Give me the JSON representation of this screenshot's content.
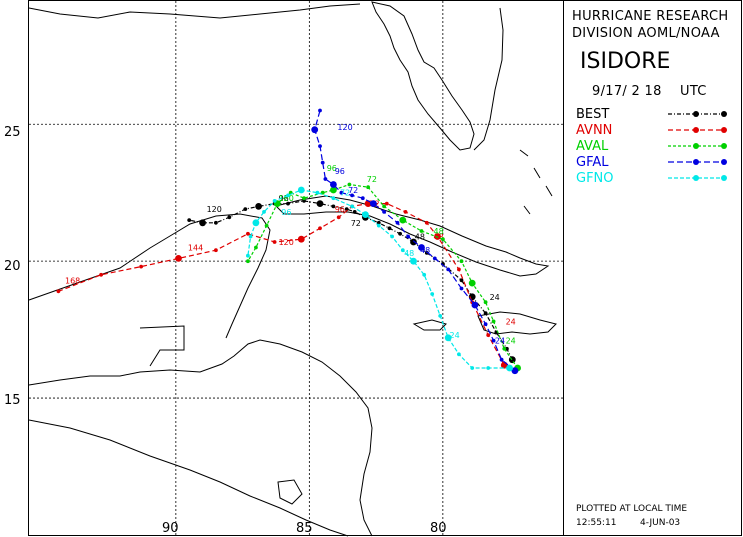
{
  "header": {
    "org_line1": "HURRICANE RESEARCH",
    "org_line2": "DIVISION AOML/NOAA",
    "storm_name": "ISIDORE",
    "init_time": "9/17/ 2 18",
    "time_zone": "UTC"
  },
  "footer": {
    "note": "PLOTTED AT LOCAL TIME",
    "clock": "12:55:11",
    "date": "4-JUN-03"
  },
  "axes": {
    "lat_labels": [
      "25",
      "20",
      "15"
    ],
    "lon_labels": [
      "90",
      "85",
      "80"
    ]
  },
  "colors": {
    "BEST": "#000000",
    "AVNN": "#e00000",
    "AVAL": "#00d000",
    "GFAL": "#0000e0",
    "GFNO": "#00e8e8"
  },
  "chart_data": {
    "type": "track-map",
    "x_unit": "degrees W longitude",
    "y_unit": "degrees N latitude",
    "xlim": [
      95.5,
      75.5
    ],
    "ylim": [
      10,
      29.5
    ],
    "grid_lon": [
      90,
      85,
      80
    ],
    "grid_lat": [
      25,
      20,
      15
    ],
    "series": [
      {
        "name": "BEST",
        "points": [
          [
            77.4,
            16.4
          ],
          [
            77.6,
            16.8
          ],
          [
            78.0,
            17.4
          ],
          [
            78.4,
            18.1
          ],
          [
            78.9,
            18.7
          ],
          [
            79.3,
            19.3
          ],
          [
            80.0,
            19.9
          ],
          [
            80.6,
            20.3
          ],
          [
            81.1,
            20.7
          ],
          [
            81.6,
            21.0
          ],
          [
            82.0,
            21.2
          ],
          [
            82.4,
            21.4
          ],
          [
            82.9,
            21.6
          ],
          [
            83.3,
            21.8
          ],
          [
            83.6,
            21.9
          ],
          [
            84.1,
            22.0
          ],
          [
            84.6,
            22.1
          ],
          [
            85.2,
            22.2
          ],
          [
            85.8,
            22.1
          ],
          [
            86.3,
            22.1
          ],
          [
            86.9,
            22.0
          ],
          [
            87.4,
            21.9
          ],
          [
            88.0,
            21.6
          ],
          [
            88.5,
            21.4
          ],
          [
            89.0,
            21.4
          ],
          [
            89.5,
            21.5
          ]
        ],
        "labels": [
          {
            "text": "24",
            "lon": 78.4,
            "lat": 18.7
          },
          {
            "text": "48",
            "lon": 81.2,
            "lat": 20.9
          },
          {
            "text": "72",
            "lon": 83.6,
            "lat": 21.4
          },
          {
            "text": "96",
            "lon": 86.3,
            "lat": 22.3
          },
          {
            "text": "120",
            "lon": 89.0,
            "lat": 21.9
          }
        ]
      },
      {
        "name": "AVNN",
        "points": [
          [
            77.7,
            16.2
          ],
          [
            78.3,
            17.3
          ],
          [
            78.9,
            18.5
          ],
          [
            79.4,
            19.7
          ],
          [
            80.2,
            20.9
          ],
          [
            80.6,
            21.4
          ],
          [
            81.4,
            21.8
          ],
          [
            82.1,
            22.1
          ],
          [
            82.8,
            22.1
          ],
          [
            83.4,
            22.0
          ],
          [
            83.9,
            21.6
          ],
          [
            84.6,
            21.2
          ],
          [
            85.3,
            20.8
          ],
          [
            86.3,
            20.7
          ],
          [
            87.3,
            21.0
          ],
          [
            88.5,
            20.4
          ],
          [
            89.9,
            20.1
          ],
          [
            91.3,
            19.8
          ],
          [
            92.8,
            19.5
          ],
          [
            94.4,
            18.9
          ]
        ],
        "labels": [
          {
            "text": "24",
            "lon": 77.8,
            "lat": 17.8
          },
          {
            "text": "48",
            "lon": 80.5,
            "lat": 20.9
          },
          {
            "text": "72",
            "lon": 82.9,
            "lat": 22.1
          },
          {
            "text": "96",
            "lon": 84.2,
            "lat": 21.9
          },
          {
            "text": "120",
            "lon": 86.3,
            "lat": 20.7
          },
          {
            "text": "144",
            "lon": 89.7,
            "lat": 20.5
          },
          {
            "text": "168",
            "lon": 94.3,
            "lat": 19.3
          }
        ]
      },
      {
        "name": "AVAL",
        "points": [
          [
            77.2,
            16.1
          ],
          [
            77.7,
            16.8
          ],
          [
            78.1,
            17.8
          ],
          [
            78.4,
            18.5
          ],
          [
            78.9,
            19.2
          ],
          [
            79.3,
            20.0
          ],
          [
            80.0,
            20.8
          ],
          [
            80.8,
            21.1
          ],
          [
            81.5,
            21.5
          ],
          [
            82.2,
            22.0
          ],
          [
            82.8,
            22.7
          ],
          [
            83.5,
            22.8
          ],
          [
            84.1,
            22.6
          ],
          [
            84.5,
            22.5
          ],
          [
            85.2,
            22.3
          ],
          [
            85.7,
            22.5
          ],
          [
            86.2,
            22.1
          ],
          [
            86.6,
            21.3
          ],
          [
            87.0,
            20.5
          ],
          [
            87.3,
            20.0
          ]
        ],
        "labels": [
          {
            "text": "24",
            "lon": 77.8,
            "lat": 17.1
          },
          {
            "text": "48",
            "lon": 80.5,
            "lat": 21.1
          },
          {
            "text": "72",
            "lon": 83.0,
            "lat": 23.0
          },
          {
            "text": "96",
            "lon": 84.5,
            "lat": 23.4
          },
          {
            "text": "120",
            "lon": 86.3,
            "lat": 22.3
          }
        ]
      },
      {
        "name": "GFAL",
        "points": [
          [
            77.3,
            16.0
          ],
          [
            77.8,
            16.4
          ],
          [
            78.1,
            17.1
          ],
          [
            78.4,
            17.7
          ],
          [
            78.8,
            18.4
          ],
          [
            79.3,
            19.0
          ],
          [
            79.8,
            19.7
          ],
          [
            80.3,
            20.1
          ],
          [
            80.8,
            20.5
          ],
          [
            81.3,
            20.9
          ],
          [
            81.7,
            21.4
          ],
          [
            82.2,
            21.8
          ],
          [
            82.6,
            22.1
          ],
          [
            83.0,
            22.3
          ],
          [
            83.4,
            22.4
          ],
          [
            83.8,
            22.5
          ],
          [
            84.1,
            22.8
          ],
          [
            84.4,
            23.0
          ],
          [
            84.5,
            23.6
          ],
          [
            84.6,
            24.2
          ],
          [
            84.8,
            24.8
          ],
          [
            84.6,
            25.5
          ]
        ],
        "labels": [
          {
            "text": "24",
            "lon": 78.2,
            "lat": 17.1
          },
          {
            "text": "48",
            "lon": 81.0,
            "lat": 20.4
          },
          {
            "text": "72",
            "lon": 83.7,
            "lat": 22.6
          },
          {
            "text": "96",
            "lon": 84.2,
            "lat": 23.3
          },
          {
            "text": "120",
            "lon": 84.1,
            "lat": 24.9
          }
        ]
      },
      {
        "name": "GFNO",
        "points": [
          [
            77.5,
            16.1
          ],
          [
            78.3,
            16.1
          ],
          [
            78.9,
            16.1
          ],
          [
            79.4,
            16.6
          ],
          [
            79.8,
            17.2
          ],
          [
            80.1,
            18.0
          ],
          [
            80.4,
            18.8
          ],
          [
            80.7,
            19.5
          ],
          [
            81.1,
            20.0
          ],
          [
            81.5,
            20.4
          ],
          [
            81.9,
            20.9
          ],
          [
            82.4,
            21.3
          ],
          [
            82.9,
            21.7
          ],
          [
            83.4,
            22.0
          ],
          [
            84.1,
            22.3
          ],
          [
            84.7,
            22.5
          ],
          [
            85.3,
            22.6
          ],
          [
            85.8,
            22.4
          ],
          [
            86.3,
            22.2
          ],
          [
            86.7,
            21.8
          ],
          [
            87.0,
            21.4
          ],
          [
            87.2,
            20.9
          ],
          [
            87.3,
            20.2
          ]
        ],
        "labels": [
          {
            "text": "24",
            "lon": 79.9,
            "lat": 17.3
          },
          {
            "text": "48",
            "lon": 81.6,
            "lat": 20.3
          },
          {
            "text": "72",
            "lon": 84.0,
            "lat": 22.5
          },
          {
            "text": "96",
            "lon": 86.2,
            "lat": 21.8
          }
        ]
      }
    ]
  }
}
